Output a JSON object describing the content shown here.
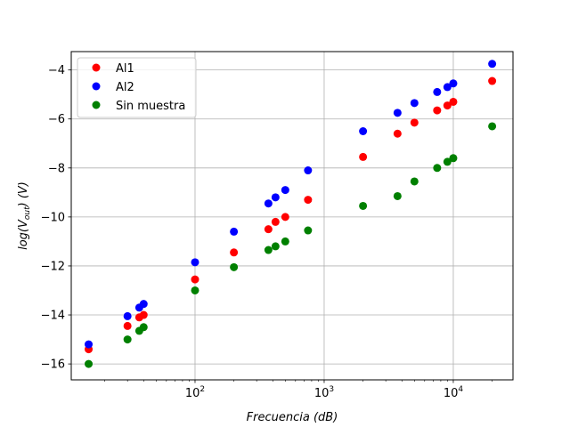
{
  "chart_data": {
    "type": "scatter",
    "title": "",
    "xlabel": "Frecuencia (dB)",
    "xlabel_parts": {
      "main": "Frecuencia",
      "unit": "(dB)"
    },
    "ylabel": "log(V_out) (V)",
    "ylabel_parts": {
      "prefix": "log(V",
      "sub": "out",
      "suffix": ") (V)"
    },
    "xscale": "log",
    "xlim": [
      11,
      29000
    ],
    "ylim": [
      -16.65,
      -3.25
    ],
    "xticks": [
      {
        "value": 100,
        "base": "10",
        "exp": "2"
      },
      {
        "value": 1000,
        "base": "10",
        "exp": "3"
      },
      {
        "value": 10000,
        "base": "10",
        "exp": "4"
      }
    ],
    "yticks": [
      {
        "value": -16,
        "label": "−16"
      },
      {
        "value": -14,
        "label": "−14"
      },
      {
        "value": -12,
        "label": "−12"
      },
      {
        "value": -10,
        "label": "−10"
      },
      {
        "value": -8,
        "label": "−8"
      },
      {
        "value": -6,
        "label": "−6"
      },
      {
        "value": -4,
        "label": "−4"
      }
    ],
    "grid": true,
    "legend_position": "upper-left",
    "x": [
      15,
      30,
      37,
      40,
      100,
      200,
      370,
      420,
      500,
      750,
      2000,
      3700,
      5000,
      7500,
      9000,
      10000,
      20000
    ],
    "series": [
      {
        "name": "Al1",
        "color": "#ff0000",
        "values": [
          -15.4,
          -14.45,
          -14.1,
          -14.0,
          -12.55,
          -11.45,
          -10.5,
          -10.2,
          -10.0,
          -9.3,
          -7.55,
          -6.6,
          -6.15,
          -5.65,
          -5.45,
          -5.3,
          -4.45
        ]
      },
      {
        "name": "Al2",
        "color": "#0000ff",
        "values": [
          -15.2,
          -14.05,
          -13.7,
          -13.55,
          -11.85,
          -10.6,
          -9.45,
          -9.2,
          -8.9,
          -8.1,
          -6.5,
          -5.75,
          -5.35,
          -4.9,
          -4.7,
          -4.55,
          -3.75
        ]
      },
      {
        "name": "Sin muestra",
        "color": "#008000",
        "values": [
          -16.0,
          -15.0,
          -14.65,
          -14.5,
          -13.0,
          -12.05,
          -11.35,
          -11.2,
          -11.0,
          -10.55,
          -9.55,
          -9.15,
          -8.55,
          -8.0,
          -7.75,
          -7.6,
          -6.3
        ]
      }
    ]
  }
}
